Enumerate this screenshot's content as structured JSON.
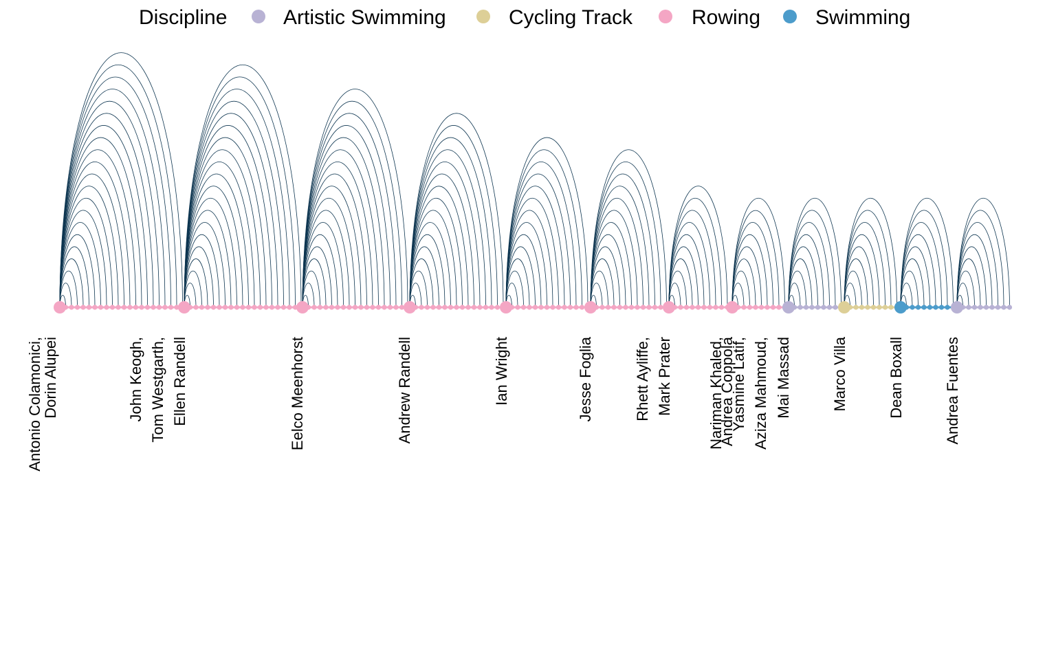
{
  "chart_data": {
    "type": "arc-diagram",
    "legend": {
      "title": "Discipline",
      "placement": "top",
      "entries": [
        {
          "name": "Artistic Swimming",
          "color": "#b8b2d4"
        },
        {
          "name": "Cycling Track",
          "color": "#ddcf97"
        },
        {
          "name": "Rowing",
          "color": "#f4a6c4"
        },
        {
          "name": "Swimming",
          "color": "#4c9ccb"
        }
      ]
    },
    "edge_color": "#0d3550",
    "hubs": [
      {
        "label": [
          "Antonio Colamonici,",
          "Dorin Alupei"
        ],
        "discipline": "Rowing",
        "connections": 21
      },
      {
        "label": [
          "John Keogh,",
          "Tom Westgarth,",
          "Ellen Randell"
        ],
        "discipline": "Rowing",
        "connections": 20
      },
      {
        "label": [
          "Eelco Meenhorst"
        ],
        "discipline": "Rowing",
        "connections": 18
      },
      {
        "label": [
          "Andrew Randell"
        ],
        "discipline": "Rowing",
        "connections": 16
      },
      {
        "label": [
          "Ian Wright"
        ],
        "discipline": "Rowing",
        "connections": 14
      },
      {
        "label": [
          "Jesse Foglia"
        ],
        "discipline": "Rowing",
        "connections": 13
      },
      {
        "label": [
          "Rhett Ayliffe,",
          "Mark Prater"
        ],
        "discipline": "Rowing",
        "connections": 10
      },
      {
        "label": [
          "Nariman Khaled,",
          "Andrea Coppola",
          "Yasmine Latif,",
          "Aziza Mahmoud,",
          "Mai Massad"
        ],
        "discipline": "Rowing",
        "connections": 9
      },
      {
        "label": [
          "Marco Villa"
        ],
        "discipline": "Artistic Swimming",
        "connections": 9
      },
      {
        "label": [
          "Dean Boxall"
        ],
        "discipline": "Cycling Track",
        "connections": 9
      },
      {
        "label": [
          "Andrea Fuentes"
        ],
        "discipline": "Swimming",
        "connections": 9
      },
      {
        "label": [],
        "discipline": "Artistic Swimming",
        "connections": 9
      }
    ]
  }
}
